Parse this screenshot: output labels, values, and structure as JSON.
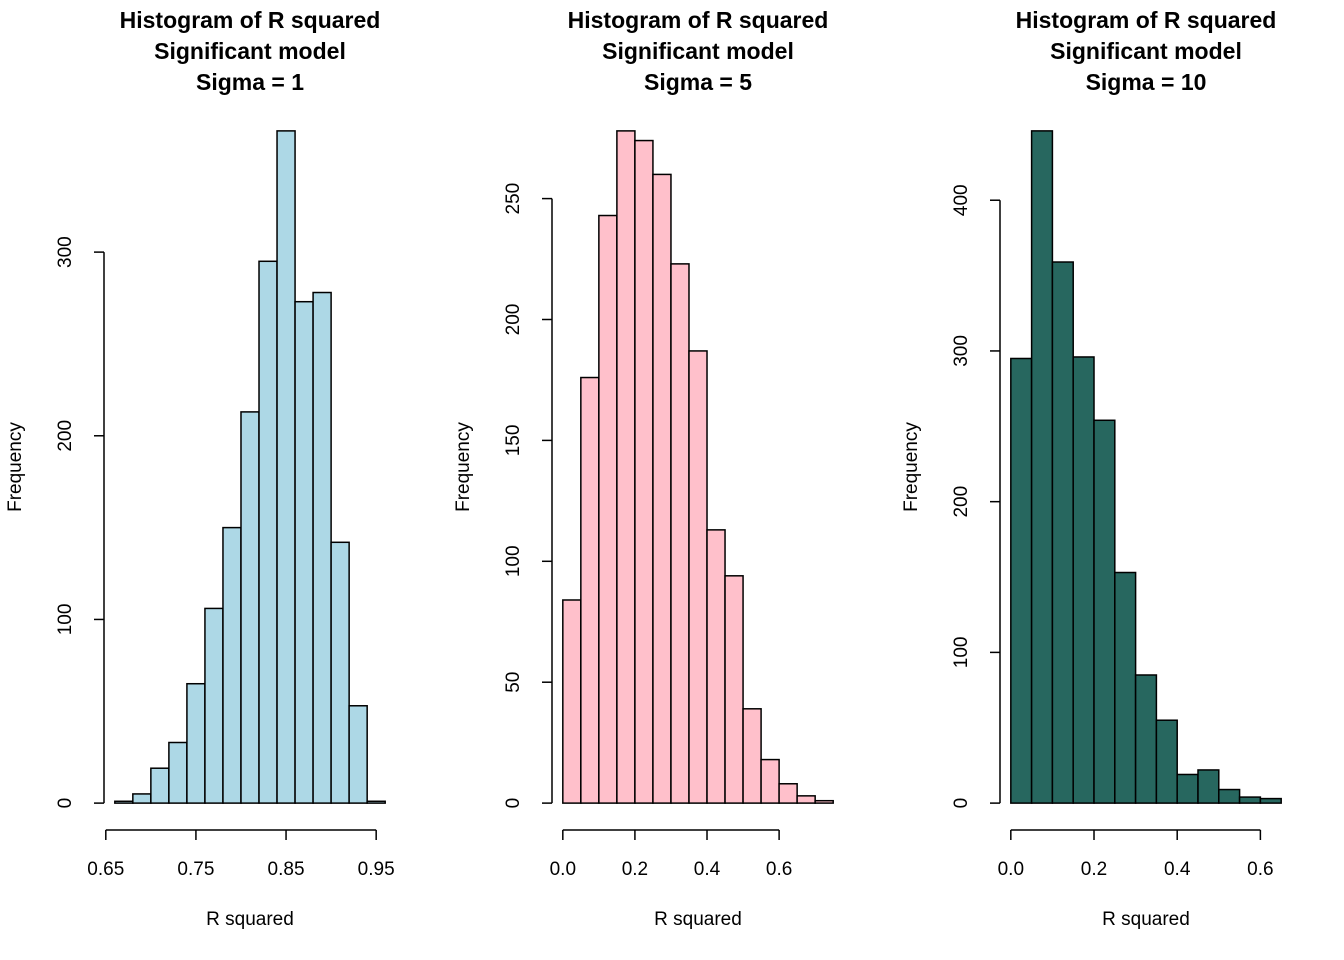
{
  "chart_data": [
    {
      "type": "histogram",
      "title": [
        "Histogram of R squared",
        "Significant model",
        "Sigma = 1"
      ],
      "x_label": "R squared",
      "y_label": "Frequency",
      "bins": [
        0.66,
        0.68,
        0.7,
        0.72,
        0.74,
        0.76,
        0.78,
        0.8,
        0.82,
        0.84,
        0.86,
        0.88,
        0.9,
        0.92,
        0.94,
        0.96
      ],
      "values": [
        1,
        5,
        19,
        33,
        65,
        106,
        150,
        213,
        295,
        366,
        273,
        278,
        142,
        53,
        1
      ],
      "color": "#add8e6",
      "xlim": [
        0.648,
        0.972
      ],
      "xticks": [
        0.65,
        0.75,
        0.85,
        0.95
      ],
      "ylim": [
        -14.64,
        380.64
      ],
      "yticks": [
        0,
        100,
        200,
        300
      ]
    },
    {
      "type": "histogram",
      "title": [
        "Histogram of R squared",
        "Significant model",
        "Sigma = 5"
      ],
      "x_label": "R squared",
      "y_label": "Frequency",
      "bins": [
        0,
        0.05,
        0.1,
        0.15,
        0.2,
        0.25,
        0.3,
        0.35,
        0.4,
        0.45,
        0.5,
        0.55,
        0.6,
        0.65,
        0.7,
        0.75
      ],
      "values": [
        84,
        176,
        243,
        278,
        274,
        260,
        223,
        187,
        113,
        94,
        39,
        18,
        8,
        3,
        1
      ],
      "color": "#ffc0cb",
      "xlim": [
        -0.03,
        0.78
      ],
      "xticks": [
        {
          "value": 0,
          "label": "0.0"
        },
        0.2,
        0.4,
        0.6
      ],
      "ylim": [
        -11.12,
        289.12
      ],
      "yticks": [
        0,
        50,
        100,
        150,
        200,
        250
      ]
    },
    {
      "type": "histogram",
      "title": [
        "Histogram of R squared",
        "Significant model",
        "Sigma = 10"
      ],
      "x_label": "R squared",
      "y_label": "Frequency",
      "bins": [
        0,
        0.05,
        0.1,
        0.15,
        0.2,
        0.25,
        0.3,
        0.35,
        0.4,
        0.45,
        0.5,
        0.55,
        0.6,
        0.65
      ],
      "values": [
        295,
        446,
        359,
        296,
        254,
        153,
        85,
        55,
        19,
        22,
        9,
        4,
        3
      ],
      "color": "#27675f",
      "xlim": [
        -0.026,
        0.676
      ],
      "xticks": [
        {
          "value": 0,
          "label": "0.0"
        },
        0.2,
        0.4,
        0.6
      ],
      "ylim": [
        -17.84,
        463.84
      ],
      "yticks": [
        0,
        100,
        200,
        300,
        400
      ]
    }
  ]
}
